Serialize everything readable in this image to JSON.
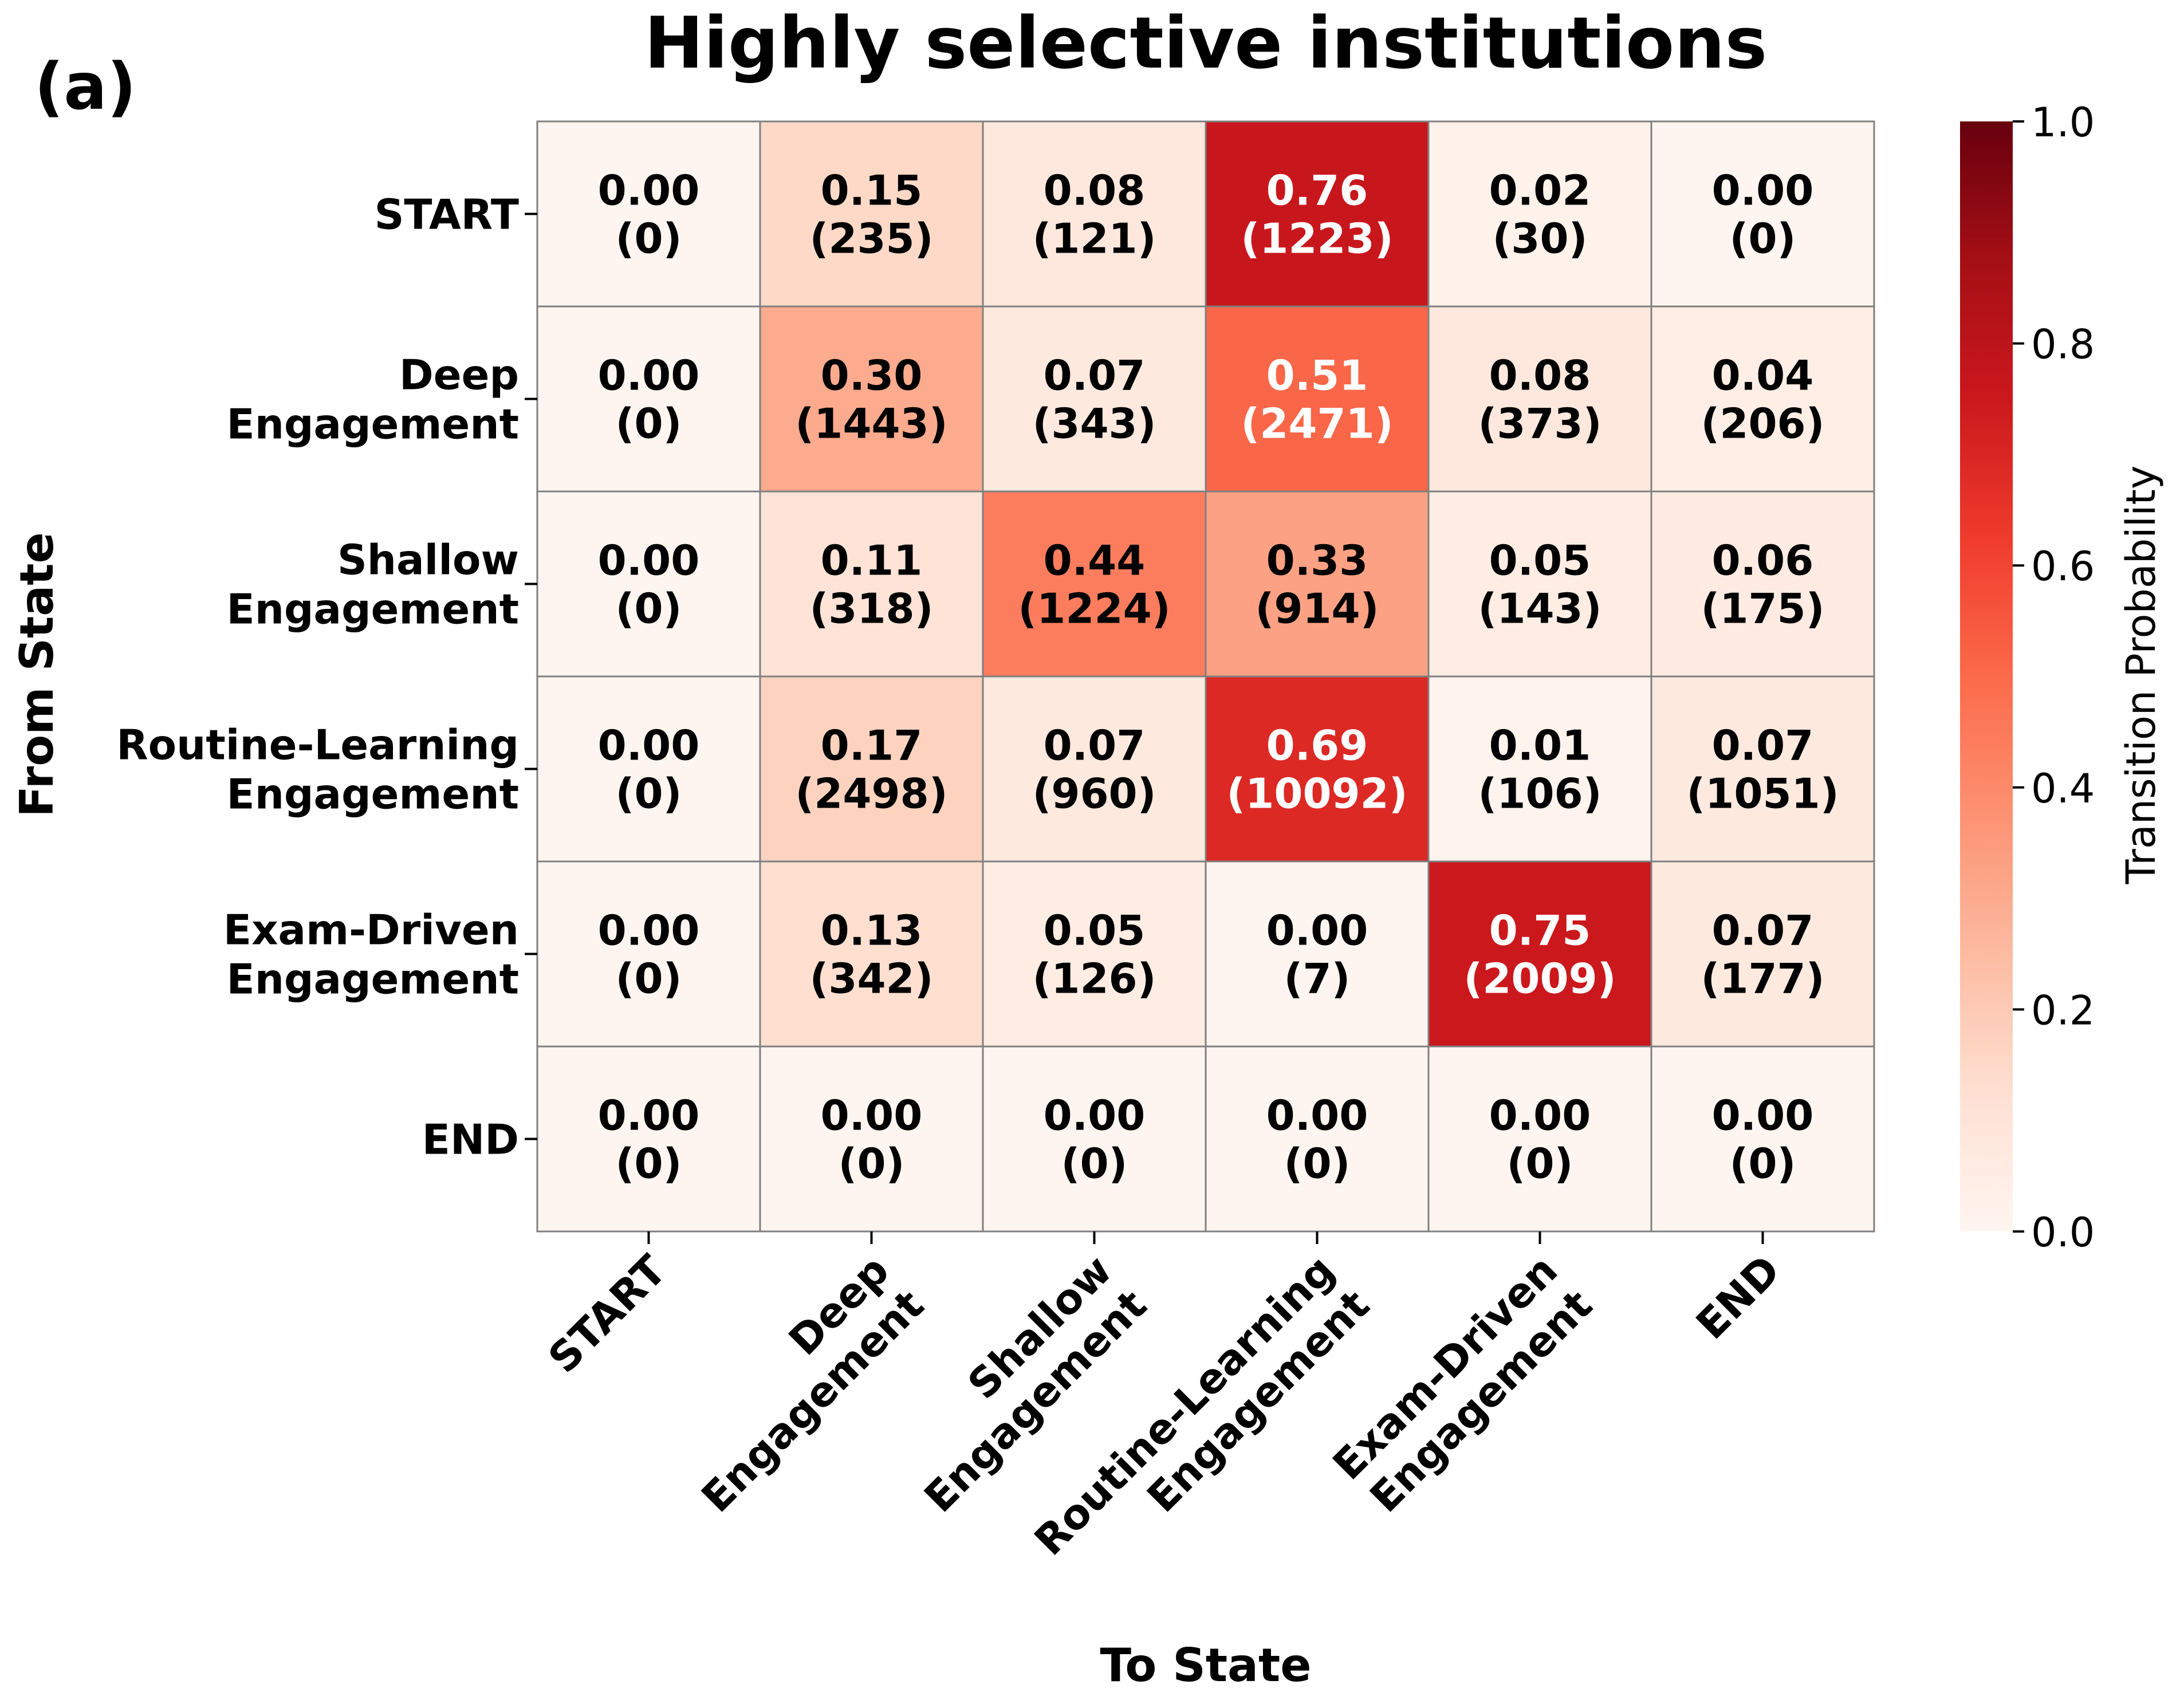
{
  "panel_label": "(a)",
  "chart_data": {
    "type": "heatmap",
    "title": "Highly selective institutions",
    "xlabel": "To State",
    "ylabel": "From State",
    "row_labels": [
      [
        "START"
      ],
      [
        "Deep",
        "Engagement"
      ],
      [
        "Shallow",
        "Engagement"
      ],
      [
        "Routine-Learning",
        "Engagement"
      ],
      [
        "Exam-Driven",
        "Engagement"
      ],
      [
        "END"
      ]
    ],
    "col_labels": [
      [
        "START"
      ],
      [
        "Deep",
        "Engagement"
      ],
      [
        "Shallow",
        "Engagement"
      ],
      [
        "Routine-Learning",
        "Engagement"
      ],
      [
        "Exam-Driven",
        "Engagement"
      ],
      [
        "END"
      ]
    ],
    "probabilities": [
      [
        0.0,
        0.15,
        0.08,
        0.76,
        0.02,
        0.0
      ],
      [
        0.0,
        0.3,
        0.07,
        0.51,
        0.08,
        0.04
      ],
      [
        0.0,
        0.11,
        0.44,
        0.33,
        0.05,
        0.06
      ],
      [
        0.0,
        0.17,
        0.07,
        0.69,
        0.01,
        0.07
      ],
      [
        0.0,
        0.13,
        0.05,
        0.0,
        0.75,
        0.07
      ],
      [
        0.0,
        0.0,
        0.0,
        0.0,
        0.0,
        0.0
      ]
    ],
    "prob_labels": [
      [
        "0.00",
        "0.15",
        "0.08",
        "0.76",
        "0.02",
        "0.00"
      ],
      [
        "0.00",
        "0.30",
        "0.07",
        "0.51",
        "0.08",
        "0.04"
      ],
      [
        "0.00",
        "0.11",
        "0.44",
        "0.33",
        "0.05",
        "0.06"
      ],
      [
        "0.00",
        "0.17",
        "0.07",
        "0.69",
        "0.01",
        "0.07"
      ],
      [
        "0.00",
        "0.13",
        "0.05",
        "0.00",
        "0.75",
        "0.07"
      ],
      [
        "0.00",
        "0.00",
        "0.00",
        "0.00",
        "0.00",
        "0.00"
      ]
    ],
    "counts": [
      [
        0,
        235,
        121,
        1223,
        30,
        0
      ],
      [
        0,
        1443,
        343,
        2471,
        373,
        206
      ],
      [
        0,
        318,
        1224,
        914,
        143,
        175
      ],
      [
        0,
        2498,
        960,
        10092,
        106,
        1051
      ],
      [
        0,
        342,
        126,
        7,
        2009,
        177
      ],
      [
        0,
        0,
        0,
        0,
        0,
        0
      ]
    ],
    "colorbar": {
      "label": "Transition Probability",
      "vmin": 0.0,
      "vmax": 1.0,
      "ticks": [
        0.0,
        0.2,
        0.4,
        0.6,
        0.8,
        1.0
      ],
      "tick_labels": [
        "0.0",
        "0.2",
        "0.4",
        "0.6",
        "0.8",
        "1.0"
      ]
    },
    "colormap": "Reds",
    "colormap_stops": [
      "#fff5f0",
      "#fee0d2",
      "#fcbba1",
      "#fc9272",
      "#fb6a4a",
      "#ef3b2c",
      "#cb181d",
      "#a50f15",
      "#67000d"
    ],
    "cell_border_color": "#808080",
    "text_dark": "#000000",
    "text_light": "#ffffff"
  }
}
